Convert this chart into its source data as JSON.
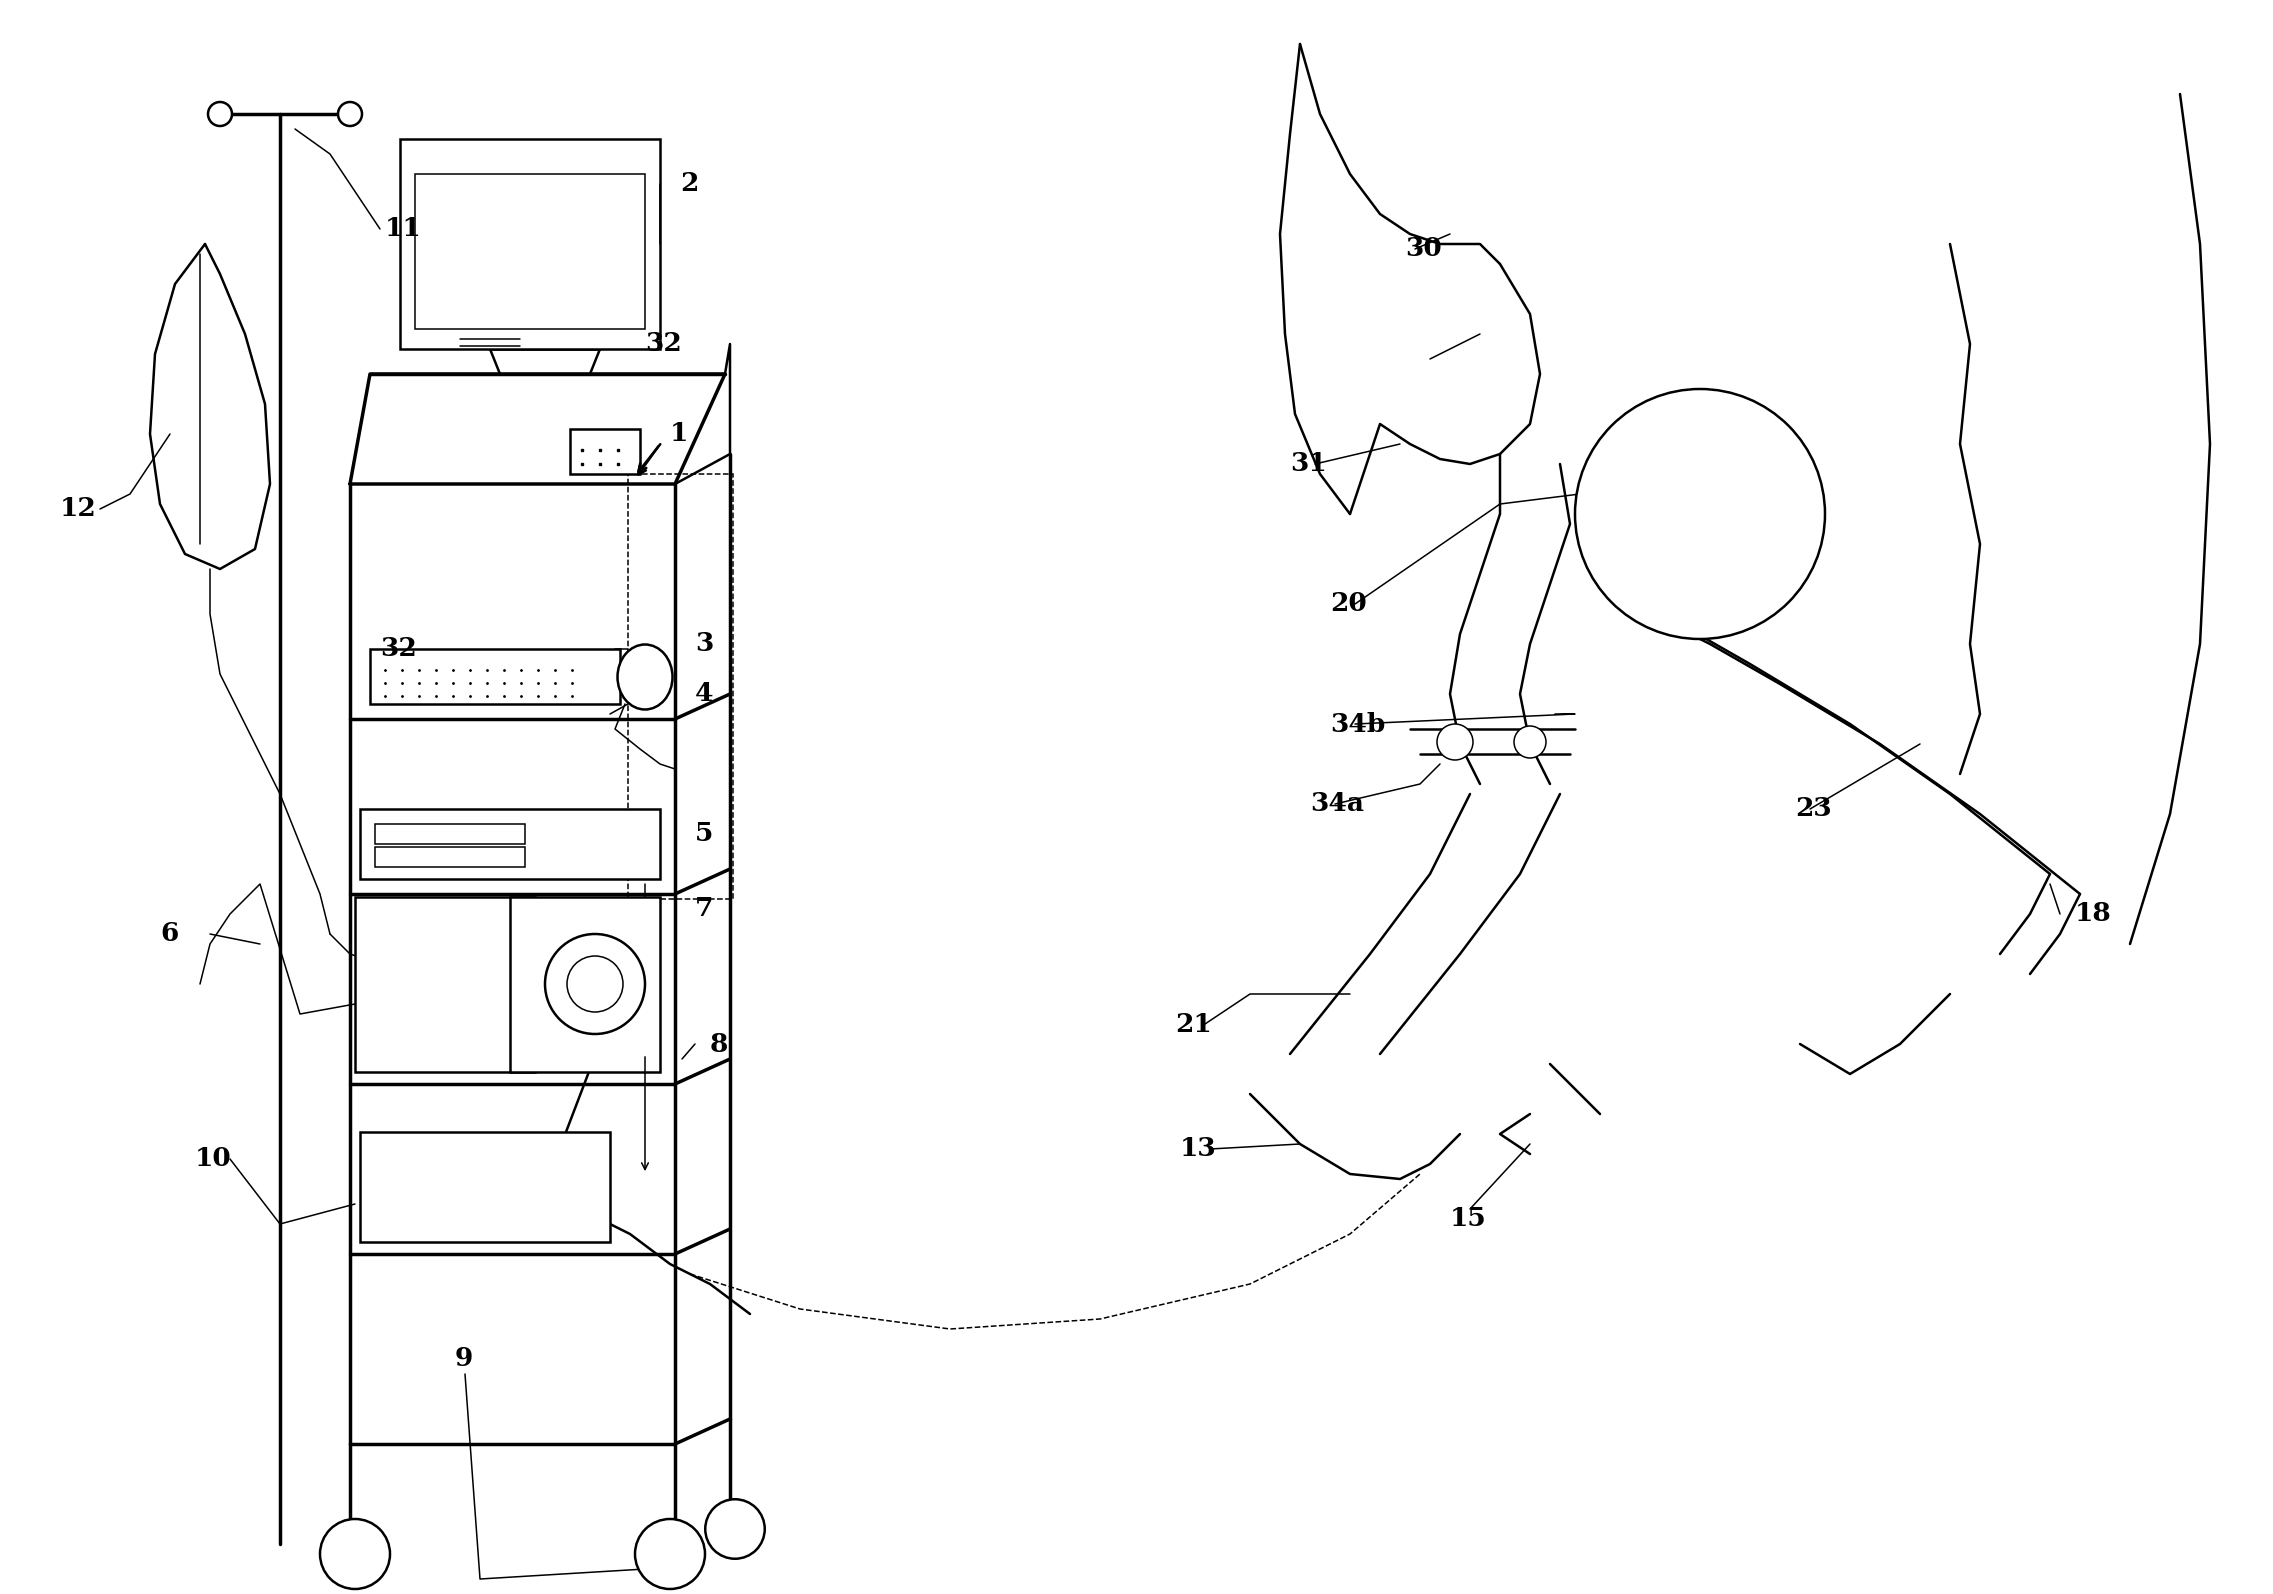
{
  "bg_color": "#ffffff",
  "line_color": "#000000",
  "label_fontsize": 19,
  "label_fontweight": "bold",
  "figsize": [
    22.73,
    15.94
  ],
  "dpi": 100
}
